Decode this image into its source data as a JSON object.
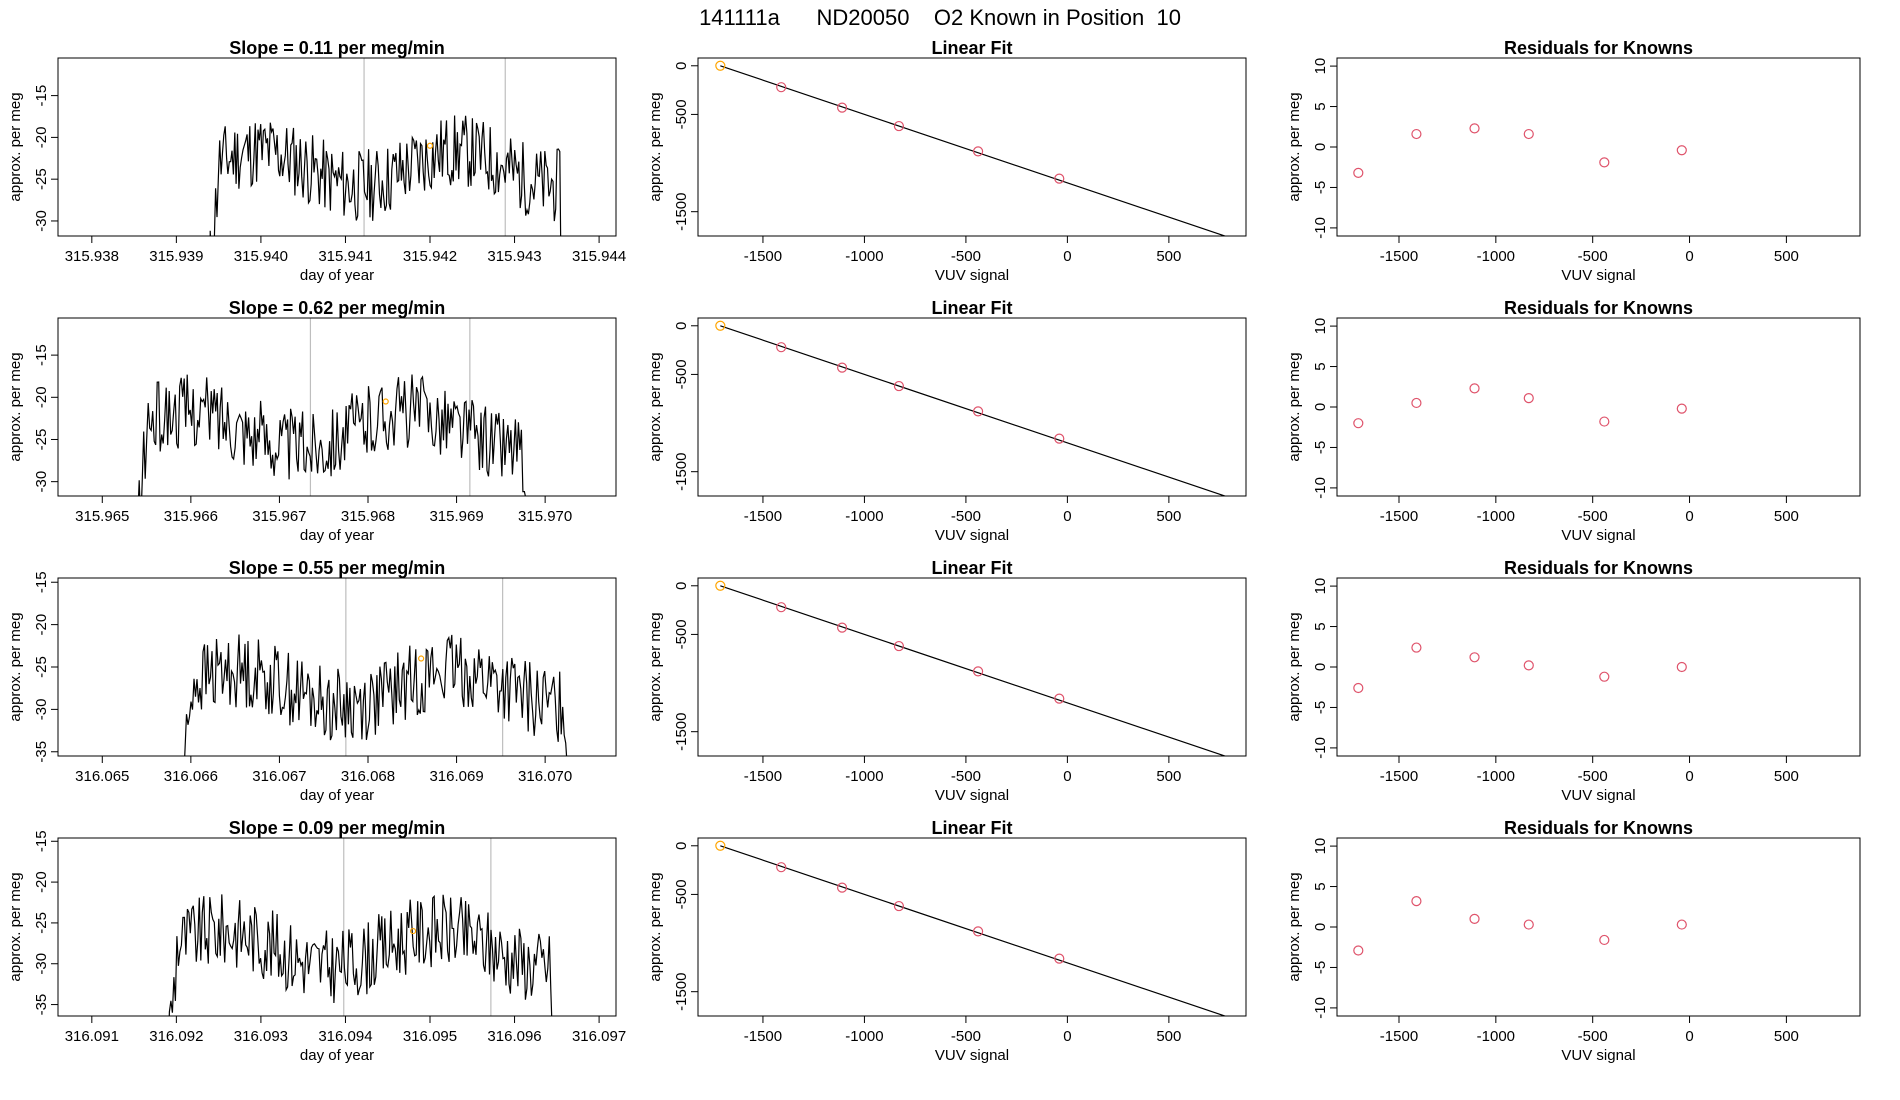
{
  "figure": {
    "title": "141111a      ND20050    O2 Known in Position  10"
  },
  "chart_data": [
    {
      "type": "line",
      "row": 0,
      "title": "Slope =  0.11  per meg/min",
      "xlabel": "day of year",
      "ylabel": "approx. per meg",
      "xlim": [
        315.9376,
        315.9442
      ],
      "ylim": [
        -31.8,
        -10.5
      ],
      "xticks": [
        315.938,
        315.939,
        315.94,
        315.941,
        315.942,
        315.943,
        315.944
      ],
      "xtick_labels": [
        "315.938",
        "315.939",
        "315.940",
        "315.941",
        "315.942",
        "315.943",
        "315.944"
      ],
      "yticks": [
        -30,
        -25,
        -20,
        -15
      ],
      "ytick_labels": [
        "-30",
        "-25",
        "-20",
        "-15"
      ],
      "x_start": 315.9394,
      "x_end": 315.9436,
      "vlines": [
        315.94122,
        315.94289
      ],
      "orange_point": [
        315.942,
        -21
      ],
      "seed": 11
    },
    {
      "type": "scatter",
      "row": 0,
      "title": "Linear Fit",
      "xlabel": "VUV signal",
      "ylabel": "approx. per meg",
      "xlim": [
        -1820,
        880
      ],
      "ylim": [
        -1750,
        80
      ],
      "xticks": [
        -1500,
        -1000,
        -500,
        0,
        500
      ],
      "xtick_labels": [
        "-1500",
        "-1000",
        "-500",
        "0",
        "500"
      ],
      "yticks": [
        -1500,
        -500,
        0
      ],
      "ytick_labels": [
        "-1500",
        "-500",
        "0"
      ],
      "points": [
        [
          -1710,
          0
        ],
        [
          -1410,
          -220
        ],
        [
          -1110,
          -430
        ],
        [
          -830,
          -620
        ],
        [
          -440,
          -880
        ],
        [
          -40,
          -1160
        ]
      ],
      "fit_line": [
        [
          -1710,
          0
        ],
        [
          790,
          -1760
        ]
      ]
    },
    {
      "type": "scatter",
      "row": 0,
      "title": "Residuals for Knowns",
      "xlabel": "VUV signal",
      "ylabel": "approx. per meg",
      "xlim": [
        -1820,
        880
      ],
      "ylim": [
        -11,
        11
      ],
      "xticks": [
        -1500,
        -1000,
        -500,
        0,
        500
      ],
      "xtick_labels": [
        "-1500",
        "-1000",
        "-500",
        "0",
        "500"
      ],
      "yticks": [
        -10,
        -5,
        0,
        5,
        10
      ],
      "ytick_labels": [
        "-10",
        "-5",
        "0",
        "5",
        "10"
      ],
      "points": [
        [
          -1710,
          -3.2
        ],
        [
          -1410,
          1.6
        ],
        [
          -1110,
          2.3
        ],
        [
          -830,
          1.6
        ],
        [
          -440,
          -1.9
        ],
        [
          -40,
          -0.4
        ]
      ]
    },
    {
      "type": "line",
      "row": 1,
      "title": "Slope =  0.62  per meg/min",
      "xlabel": "day of year",
      "ylabel": "approx. per meg",
      "xlim": [
        315.9645,
        315.9708
      ],
      "ylim": [
        -31.7,
        -10.6
      ],
      "xticks": [
        315.965,
        315.966,
        315.967,
        315.968,
        315.969,
        315.97
      ],
      "xtick_labels": [
        "315.965",
        "315.966",
        "315.967",
        "315.968",
        "315.969",
        "315.970"
      ],
      "yticks": [
        -30,
        -25,
        -20,
        -15
      ],
      "ytick_labels": [
        "-30",
        "-25",
        "-20",
        "-15"
      ],
      "x_start": 315.9654,
      "x_end": 315.9698,
      "vlines": [
        315.96735,
        315.96915
      ],
      "orange_point": [
        315.9682,
        -20.5
      ],
      "seed": 62
    },
    {
      "type": "scatter",
      "row": 1,
      "title": "Linear Fit",
      "xlabel": "VUV signal",
      "ylabel": "approx. per meg",
      "xlim": [
        -1820,
        880
      ],
      "ylim": [
        -1750,
        80
      ],
      "xticks": [
        -1500,
        -1000,
        -500,
        0,
        500
      ],
      "xtick_labels": [
        "-1500",
        "-1000",
        "-500",
        "0",
        "500"
      ],
      "yticks": [
        -1500,
        -500,
        0
      ],
      "ytick_labels": [
        "-1500",
        "-500",
        "0"
      ],
      "points": [
        [
          -1710,
          0
        ],
        [
          -1410,
          -220
        ],
        [
          -1110,
          -430
        ],
        [
          -830,
          -620
        ],
        [
          -440,
          -880
        ],
        [
          -40,
          -1160
        ]
      ],
      "fit_line": [
        [
          -1710,
          0
        ],
        [
          790,
          -1760
        ]
      ]
    },
    {
      "type": "scatter",
      "row": 1,
      "title": "Residuals for Knowns",
      "xlabel": "VUV signal",
      "ylabel": "approx. per meg",
      "xlim": [
        -1820,
        880
      ],
      "ylim": [
        -11,
        11
      ],
      "xticks": [
        -1500,
        -1000,
        -500,
        0,
        500
      ],
      "xtick_labels": [
        "-1500",
        "-1000",
        "-500",
        "0",
        "500"
      ],
      "yticks": [
        -10,
        -5,
        0,
        5,
        10
      ],
      "ytick_labels": [
        "-10",
        "-5",
        "0",
        "5",
        "10"
      ],
      "points": [
        [
          -1710,
          -2.0
        ],
        [
          -1410,
          0.5
        ],
        [
          -1110,
          2.3
        ],
        [
          -830,
          1.1
        ],
        [
          -440,
          -1.8
        ],
        [
          -40,
          -0.2
        ]
      ]
    },
    {
      "type": "line",
      "row": 2,
      "title": "Slope =  0.55  per meg/min",
      "xlabel": "day of year",
      "ylabel": "approx. per meg",
      "xlim": [
        316.0645,
        316.0708
      ],
      "ylim": [
        -35.5,
        -14.5
      ],
      "xticks": [
        316.065,
        316.066,
        316.067,
        316.068,
        316.069,
        316.07
      ],
      "xtick_labels": [
        "316.065",
        "316.066",
        "316.067",
        "316.068",
        "316.069",
        "316.070"
      ],
      "yticks": [
        -35,
        -30,
        -25,
        -20,
        -15
      ],
      "ytick_labels": [
        "-35",
        "-30",
        "-25",
        "-20",
        "-15"
      ],
      "x_start": 316.0659,
      "x_end": 316.0703,
      "vlines": [
        316.06775,
        316.06952
      ],
      "orange_point": [
        316.0686,
        -24
      ],
      "seed": 55
    },
    {
      "type": "scatter",
      "row": 2,
      "title": "Linear Fit",
      "xlabel": "VUV signal",
      "ylabel": "approx. per meg",
      "xlim": [
        -1820,
        880
      ],
      "ylim": [
        -1750,
        80
      ],
      "xticks": [
        -1500,
        -1000,
        -500,
        0,
        500
      ],
      "xtick_labels": [
        "-1500",
        "-1000",
        "-500",
        "0",
        "500"
      ],
      "yticks": [
        -1500,
        -500,
        0
      ],
      "ytick_labels": [
        "-1500",
        "-500",
        "0"
      ],
      "points": [
        [
          -1710,
          0
        ],
        [
          -1410,
          -220
        ],
        [
          -1110,
          -430
        ],
        [
          -830,
          -620
        ],
        [
          -440,
          -880
        ],
        [
          -40,
          -1160
        ]
      ],
      "fit_line": [
        [
          -1710,
          0
        ],
        [
          790,
          -1760
        ]
      ]
    },
    {
      "type": "scatter",
      "row": 2,
      "title": "Residuals for Knowns",
      "xlabel": "VUV signal",
      "ylabel": "approx. per meg",
      "xlim": [
        -1820,
        880
      ],
      "ylim": [
        -11,
        11
      ],
      "xticks": [
        -1500,
        -1000,
        -500,
        0,
        500
      ],
      "xtick_labels": [
        "-1500",
        "-1000",
        "-500",
        "0",
        "500"
      ],
      "yticks": [
        -10,
        -5,
        0,
        5,
        10
      ],
      "ytick_labels": [
        "-10",
        "-5",
        "0",
        "5",
        "10"
      ],
      "points": [
        [
          -1710,
          -2.6
        ],
        [
          -1410,
          2.4
        ],
        [
          -1110,
          1.2
        ],
        [
          -830,
          0.2
        ],
        [
          -440,
          -1.2
        ],
        [
          -40,
          0.0
        ]
      ]
    },
    {
      "type": "line",
      "row": 3,
      "title": "Slope =  0.09  per meg/min",
      "xlabel": "day of year",
      "ylabel": "approx. per meg",
      "xlim": [
        316.0906,
        316.0972
      ],
      "ylim": [
        -36.4,
        -14.6
      ],
      "xticks": [
        316.091,
        316.092,
        316.093,
        316.094,
        316.095,
        316.096,
        316.097
      ],
      "xtick_labels": [
        "316.091",
        "316.092",
        "316.093",
        "316.094",
        "316.095",
        "316.096",
        "316.097"
      ],
      "yticks": [
        -35,
        -30,
        -25,
        -20,
        -15
      ],
      "ytick_labels": [
        "-35",
        "-30",
        "-25",
        "-20",
        "-15"
      ],
      "x_start": 316.0919,
      "x_end": 316.0965,
      "vlines": [
        316.09398,
        316.09572
      ],
      "orange_point": [
        316.0948,
        -26
      ],
      "seed": 9
    },
    {
      "type": "scatter",
      "row": 3,
      "title": "Linear Fit",
      "xlabel": "VUV signal",
      "ylabel": "approx. per meg",
      "xlim": [
        -1820,
        880
      ],
      "ylim": [
        -1750,
        80
      ],
      "xticks": [
        -1500,
        -1000,
        -500,
        0,
        500
      ],
      "xtick_labels": [
        "-1500",
        "-1000",
        "-500",
        "0",
        "500"
      ],
      "yticks": [
        -1500,
        -500,
        0
      ],
      "ytick_labels": [
        "-1500",
        "-500",
        "0"
      ],
      "points": [
        [
          -1710,
          0
        ],
        [
          -1410,
          -220
        ],
        [
          -1110,
          -430
        ],
        [
          -830,
          -620
        ],
        [
          -440,
          -880
        ],
        [
          -40,
          -1160
        ]
      ],
      "fit_line": [
        [
          -1710,
          0
        ],
        [
          790,
          -1760
        ]
      ]
    },
    {
      "type": "scatter",
      "row": 3,
      "title": "Residuals for Knowns",
      "xlabel": "VUV signal",
      "ylabel": "approx. per meg",
      "xlim": [
        -1820,
        880
      ],
      "ylim": [
        -11,
        11
      ],
      "xticks": [
        -1500,
        -1000,
        -500,
        0,
        500
      ],
      "xtick_labels": [
        "-1500",
        "-1000",
        "-500",
        "0",
        "500"
      ],
      "yticks": [
        -10,
        -5,
        0,
        5,
        10
      ],
      "ytick_labels": [
        "-10",
        "-5",
        "0",
        "5",
        "10"
      ],
      "points": [
        [
          -1710,
          -2.9
        ],
        [
          -1410,
          3.2
        ],
        [
          -1110,
          1.0
        ],
        [
          -830,
          0.3
        ],
        [
          -440,
          -1.6
        ],
        [
          -40,
          0.3
        ]
      ]
    }
  ],
  "colors": {
    "line": "#000000",
    "box": "#000000",
    "vline": "#bebebe",
    "orange": "#ffa500",
    "residual_point": "#df536b"
  }
}
